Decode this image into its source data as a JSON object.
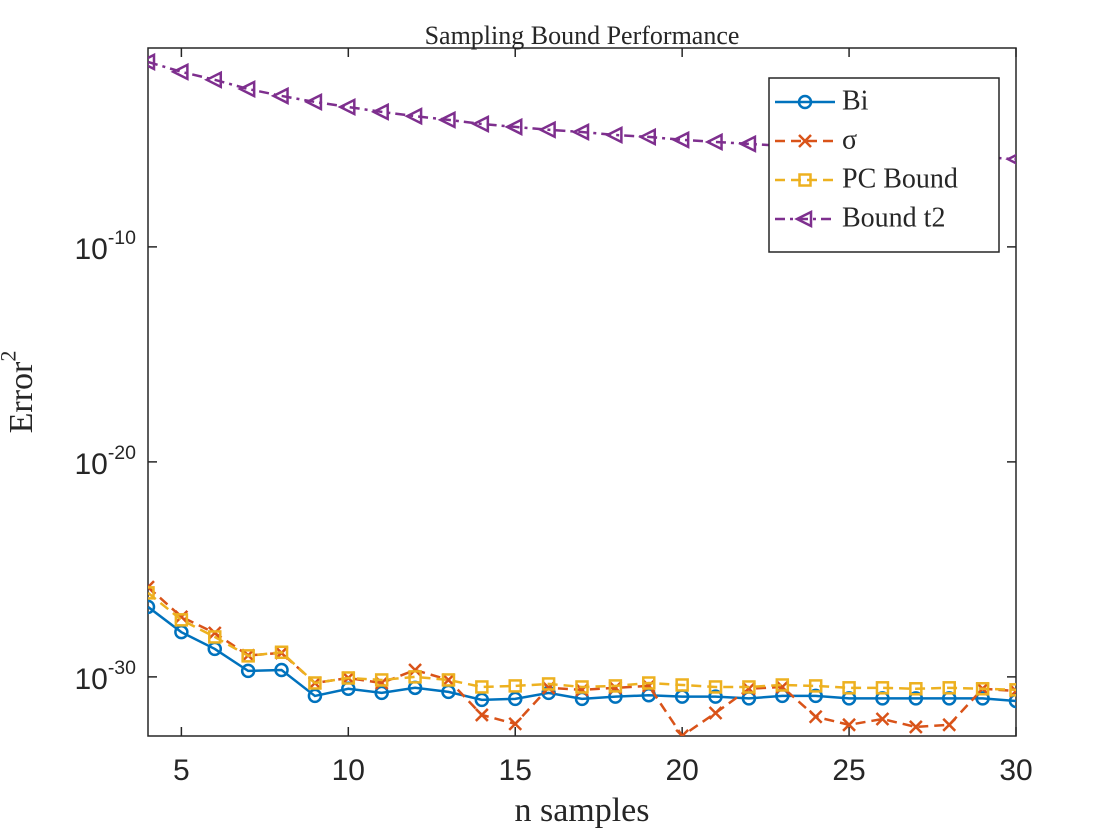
{
  "chart_data": {
    "type": "line",
    "title": "Sampling Bound Performance",
    "x_label": "n samples",
    "y_label": "Error^2",
    "y_scale": "log",
    "legend": "northeast",
    "grid": false,
    "x": [
      4,
      5,
      6,
      7,
      8,
      9,
      10,
      11,
      12,
      13,
      14,
      15,
      16,
      17,
      18,
      19,
      20,
      21,
      22,
      23,
      24,
      25,
      26,
      27,
      28,
      29,
      30
    ],
    "xlim": [
      4,
      30
    ],
    "xticks": [
      5,
      10,
      15,
      20,
      25,
      30
    ],
    "ylim": [
      1.78e-33,
      0.178
    ],
    "yticks": [
      {
        "value": 1e-30,
        "label": "10^-30"
      },
      {
        "value": 1e-20,
        "label": "10^-20"
      },
      {
        "value": 1e-10,
        "label": "10^-10"
      }
    ],
    "series": [
      {
        "name": "Bi",
        "color": "#0072BD",
        "linestyle": "solid",
        "marker": "circle",
        "values": [
          1.8e-27,
          1.2e-28,
          2e-29,
          1.9e-30,
          2.1e-30,
          1.3e-31,
          2.8e-31,
          1.8e-31,
          3.1e-31,
          2e-31,
          8.5e-32,
          9.5e-32,
          1.8e-31,
          9.5e-32,
          1.2e-31,
          1.4e-31,
          1.2e-31,
          1.2e-31,
          1e-31,
          1.3e-31,
          1.3e-31,
          1e-31,
          1e-31,
          1e-31,
          1e-31,
          1e-31,
          7.6e-32
        ]
      },
      {
        "name": "σ",
        "color": "#D95319",
        "linestyle": "dashed",
        "marker": "x",
        "values": [
          1.5e-26,
          6.2e-28,
          1.1e-28,
          1e-29,
          1.3e-29,
          5.2e-31,
          8.9e-31,
          5.2e-31,
          2.1e-30,
          7.2e-31,
          1.7e-32,
          6.5e-33,
          3.1e-31,
          2.5e-31,
          3.1e-31,
          3.8e-31,
          1.8e-33,
          2.1e-32,
          2.8e-31,
          3.4e-31,
          1.4e-32,
          5.9e-33,
          1.1e-32,
          4.7e-33,
          5.9e-33,
          2.8e-31,
          2.2e-31
        ]
      },
      {
        "name": "PC Bound",
        "color": "#EDB120",
        "linestyle": "dashed",
        "marker": "square",
        "values": [
          8.1e-27,
          4.5e-28,
          7.2e-29,
          9.5e-30,
          1.4e-29,
          5.2e-31,
          8.9e-31,
          7.2e-31,
          1e-30,
          7.2e-31,
          3.4e-31,
          3.8e-31,
          4.7e-31,
          3.4e-31,
          3.8e-31,
          5.2e-31,
          4.2e-31,
          3.4e-31,
          3.4e-31,
          4.2e-31,
          3.8e-31,
          3.1e-31,
          3.1e-31,
          2.8e-31,
          3.1e-31,
          2.8e-31,
          2.5e-31
        ]
      },
      {
        "name": "Bound t2",
        "color": "#7E2F8E",
        "linestyle": "dashdot",
        "marker": "triangle-left",
        "values": [
          0.04,
          0.0138,
          0.0059,
          0.0022,
          0.00105,
          0.00055,
          0.00032,
          0.00019,
          0.00012,
          8.1e-05,
          5.2e-05,
          3.8e-05,
          2.8e-05,
          2.2e-05,
          1.6e-05,
          1.3e-05,
          9.5e-06,
          7.6e-06,
          6.2e-06,
          5e-06,
          4e-06,
          3.2e-06,
          2.6e-06,
          2.1e-06,
          1.9e-06,
          1.5e-06,
          1.2e-06
        ]
      }
    ]
  }
}
